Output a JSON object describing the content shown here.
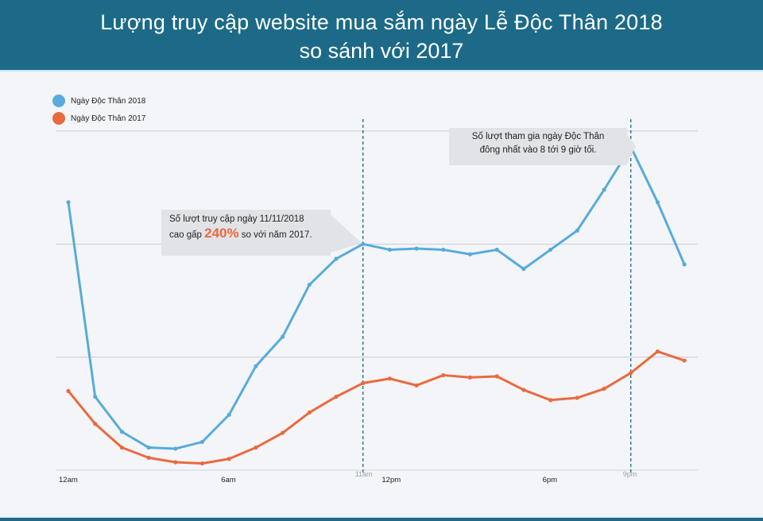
{
  "header": {
    "title_line1": "Lượng truy cập website mua sắm ngày Lễ Độc Thân 2018",
    "title_line2": "so sánh với 2017"
  },
  "legend": [
    {
      "label": "Ngày Độc Thân 2018",
      "color": "#56acdb"
    },
    {
      "label": "Ngày Độc Thân 2017",
      "color": "#ea6a3f"
    }
  ],
  "callouts": {
    "traffic": {
      "line1": "Số lượt truy cập ngày 11/11/2018",
      "line2_prefix": "cao gấp ",
      "highlight": "240%",
      "line2_suffix": " so với năm 2017."
    },
    "peak": {
      "line1": "Số lượt tham gia ngày Độc Thân",
      "line2": "đông nhất vào 8 tới 9 giờ tối."
    }
  },
  "x_axis": {
    "labels": [
      {
        "text": "12am",
        "hour": 0,
        "marker": false
      },
      {
        "text": "6am",
        "hour": 6,
        "marker": false
      },
      {
        "text": "11am",
        "hour": 11,
        "marker": true
      },
      {
        "text": "12pm",
        "hour": 12,
        "marker": false
      },
      {
        "text": "6pm",
        "hour": 18,
        "marker": false
      },
      {
        "text": "9pm",
        "hour": 21,
        "marker": true
      }
    ]
  },
  "chart_data": {
    "type": "line",
    "title": "Lượng truy cập website mua sắm ngày Lễ Độc Thân 2018 so sánh với 2017",
    "xlabel": "",
    "ylabel": "",
    "x": [
      "12am",
      "1am",
      "2am",
      "3am",
      "4am",
      "5am",
      "6am",
      "7am",
      "8am",
      "9am",
      "10am",
      "11am",
      "12pm",
      "1pm",
      "2pm",
      "3pm",
      "4pm",
      "5pm",
      "6pm",
      "7pm",
      "8pm",
      "9pm",
      "10pm",
      "11pm"
    ],
    "x_tick_labels": [
      "12am",
      "6am",
      "11am",
      "12pm",
      "6pm",
      "9pm"
    ],
    "ylim": [
      0,
      300
    ],
    "y_gridlines": [
      0,
      100,
      200,
      300
    ],
    "y_tick_labels_visible": false,
    "grid": true,
    "legend_position": "top-left",
    "vertical_markers": [
      {
        "x": "11am",
        "style": "dashed"
      },
      {
        "x": "9pm",
        "style": "dashed"
      }
    ],
    "series": [
      {
        "name": "Ngày Độc Thân 2018",
        "color": "#56acdb",
        "values": [
          237,
          65,
          34,
          20,
          19,
          25,
          49,
          92,
          118,
          164,
          187,
          200,
          195,
          196,
          195,
          191,
          195,
          178,
          195,
          212,
          248,
          286,
          237,
          182
        ]
      },
      {
        "name": "Ngày Độc Thân 2017",
        "color": "#ea6a3f",
        "values": [
          70,
          41,
          20,
          11,
          7,
          6,
          10,
          20,
          33,
          51,
          65,
          77,
          81,
          75,
          84,
          82,
          83,
          71,
          62,
          64,
          72,
          86,
          105,
          97
        ]
      }
    ],
    "annotations": [
      {
        "x": "11am",
        "text": "Số lượt truy cập ngày 11/11/2018 cao gấp 240% so với năm 2017."
      },
      {
        "x": "9pm",
        "text": "Số lượt tham gia ngày Độc Thân đông nhất vào 8 tới 9 giờ tối."
      }
    ]
  }
}
